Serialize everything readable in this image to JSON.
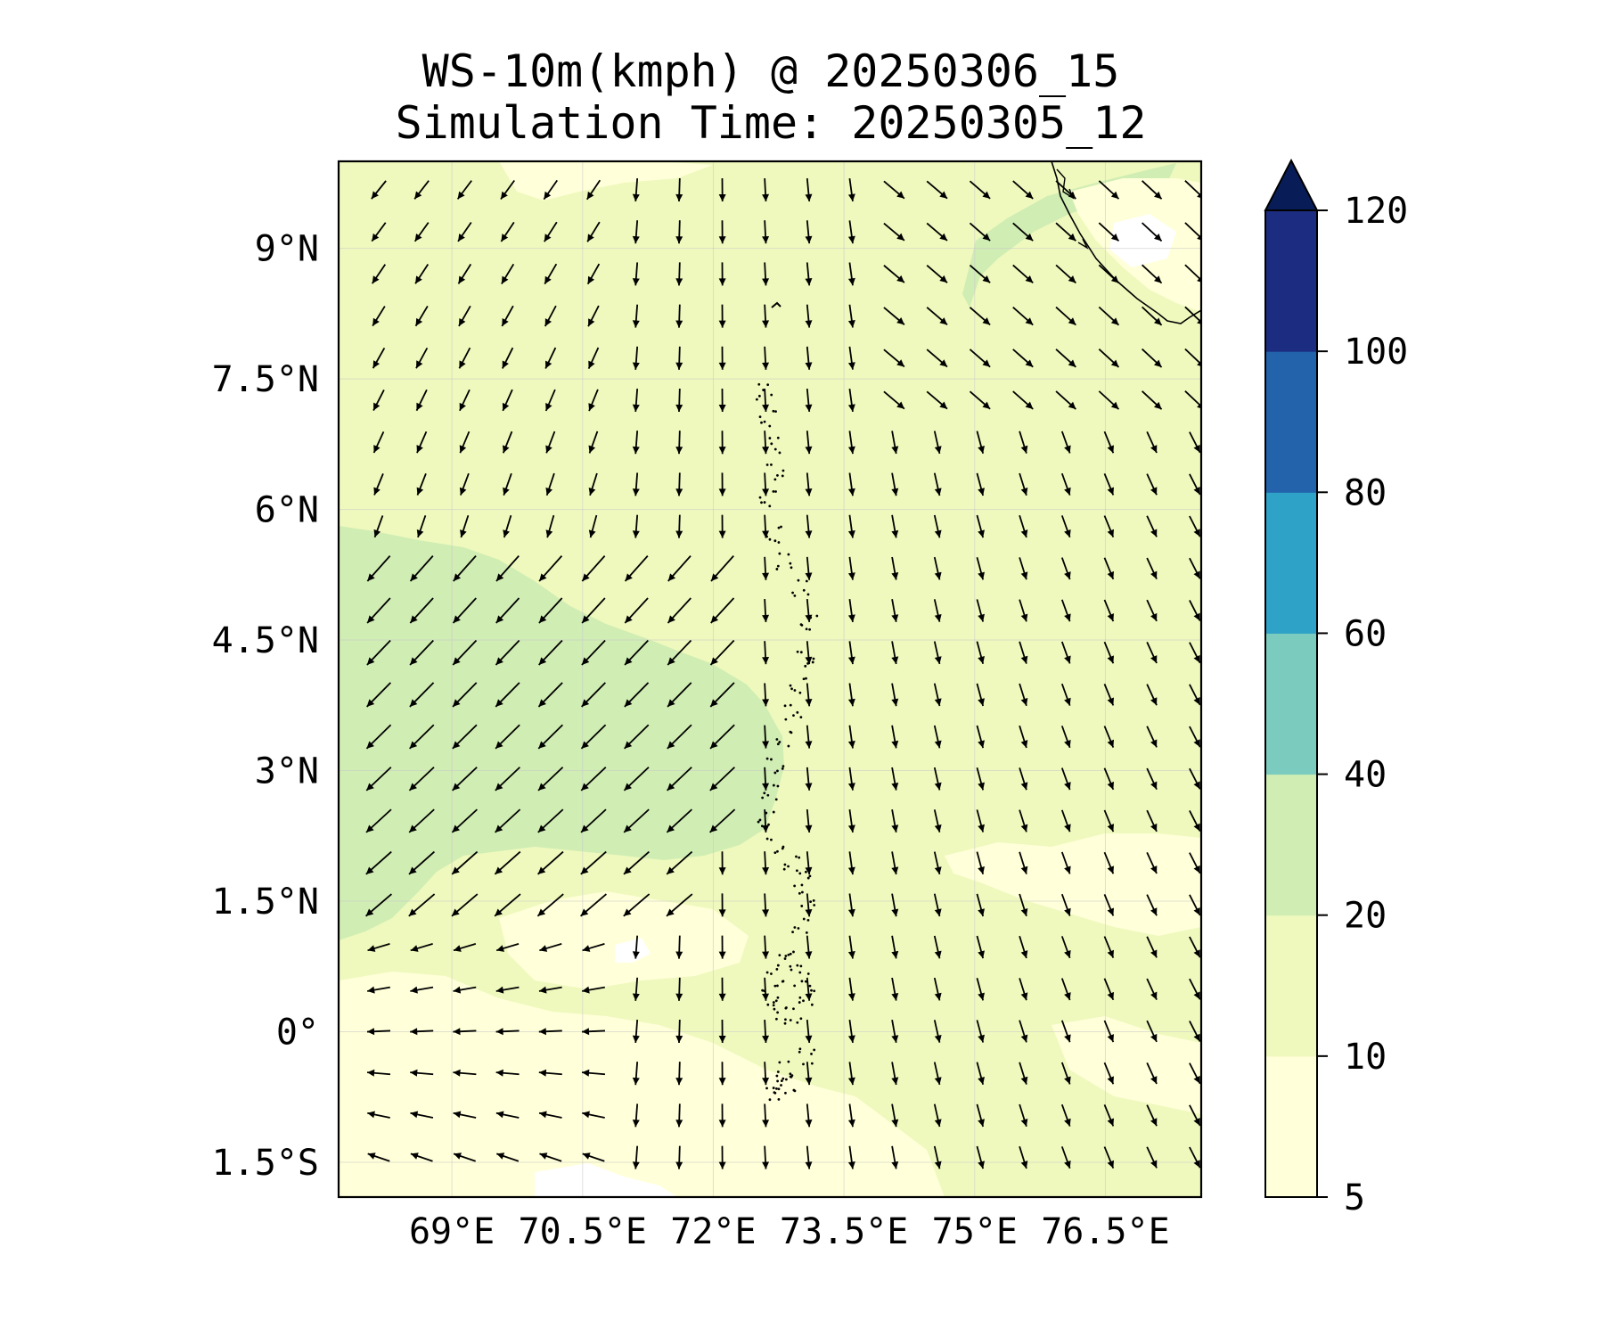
{
  "title": "WS-10m(kmph) @ 20250306_15",
  "subtitle": "Simulation Time: 20250305_12",
  "map": {
    "lon_range": [
      67.7,
      77.6
    ],
    "lat_range": [
      -1.9,
      10.0
    ],
    "lat_tick_labels": [
      {
        "lat": 9.0,
        "label": "9°N"
      },
      {
        "lat": 7.5,
        "label": "7.5°N"
      },
      {
        "lat": 6.0,
        "label": "6°N"
      },
      {
        "lat": 4.5,
        "label": "4.5°N"
      },
      {
        "lat": 3.0,
        "label": "3°N"
      },
      {
        "lat": 1.5,
        "label": "1.5°N"
      },
      {
        "lat": 0.0,
        "label": "0°"
      },
      {
        "lat": -1.5,
        "label": "1.5°S"
      }
    ],
    "lon_tick_labels": [
      {
        "lon": 69.0,
        "label": "69°E"
      },
      {
        "lon": 70.5,
        "label": "70.5°E"
      },
      {
        "lon": 72.0,
        "label": "72°E"
      },
      {
        "lon": 73.5,
        "label": "73.5°E"
      },
      {
        "lon": 75.0,
        "label": "75°E"
      },
      {
        "lon": 76.5,
        "label": "76.5°E"
      }
    ],
    "gridlines": true,
    "fill_colors": {
      "calm": "#ffffd9",
      "light": "#eff9bd",
      "moderate": "#d0edb3",
      "no_data": "#ffffff"
    },
    "vector_color": "#000000"
  },
  "colorbar": {
    "levels": [
      5,
      10,
      20,
      40,
      60,
      80,
      100,
      120
    ],
    "tick_labels": [
      "5",
      "10",
      "20",
      "40",
      "60",
      "80",
      "100",
      "120"
    ],
    "colors": [
      "#ffffd9",
      "#eff9bd",
      "#d0edb3",
      "#7bcbbe",
      "#2fa2c7",
      "#2263ab",
      "#1c2c80"
    ],
    "extend_color": "#081d58",
    "extend": "max"
  }
}
